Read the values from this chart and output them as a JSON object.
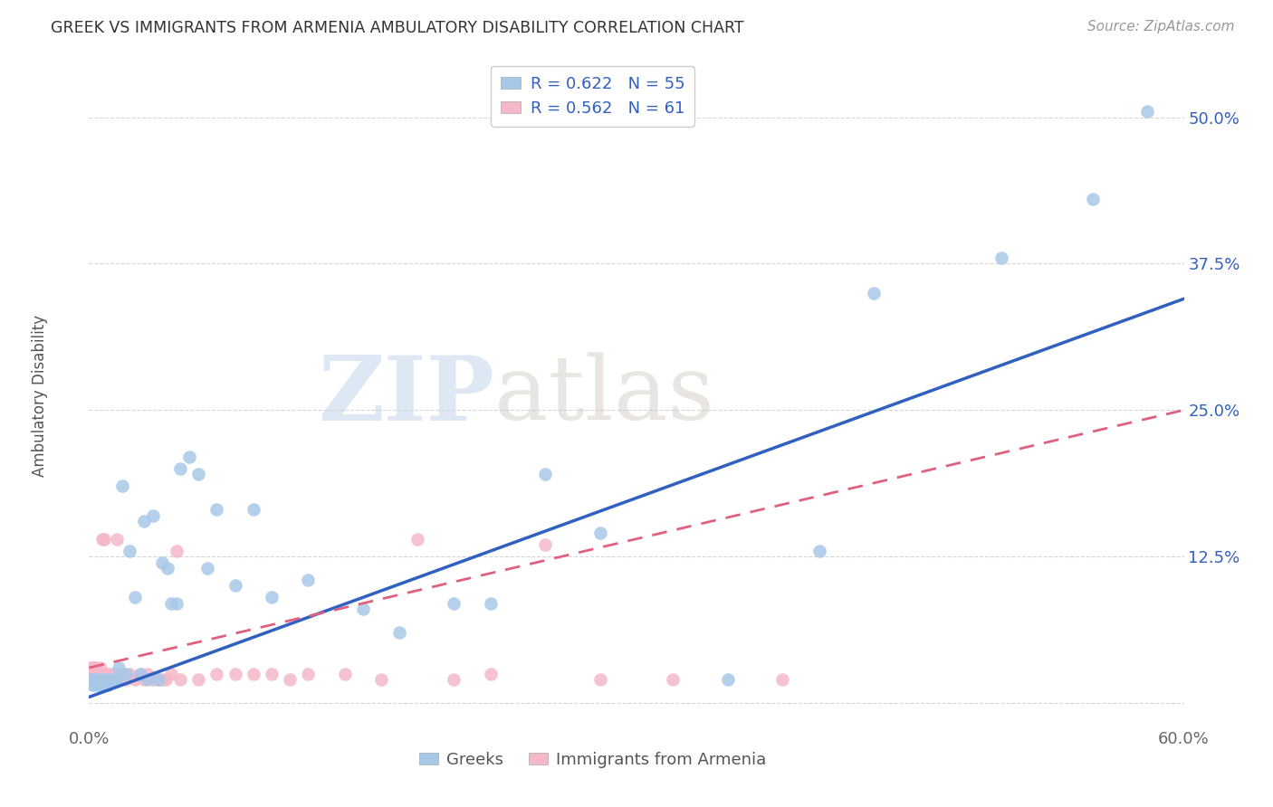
{
  "title": "GREEK VS IMMIGRANTS FROM ARMENIA AMBULATORY DISABILITY CORRELATION CHART",
  "source": "Source: ZipAtlas.com",
  "ylabel": "Ambulatory Disability",
  "xlim": [
    0.0,
    0.6
  ],
  "ylim": [
    -0.02,
    0.545
  ],
  "xticks": [
    0.0,
    0.1,
    0.2,
    0.3,
    0.4,
    0.5,
    0.6
  ],
  "xticklabels": [
    "0.0%",
    "",
    "",
    "",
    "",
    "",
    "60.0%"
  ],
  "yticks": [
    0.0,
    0.125,
    0.25,
    0.375,
    0.5
  ],
  "yticklabels": [
    "",
    "12.5%",
    "25.0%",
    "37.5%",
    "50.0%"
  ],
  "legend1_R": "0.622",
  "legend1_N": "55",
  "legend2_R": "0.562",
  "legend2_N": "61",
  "blue_color": "#a8c8e8",
  "pink_color": "#f4b8c8",
  "blue_line_color": "#3060c0",
  "pink_line_color": "#e06080",
  "watermark_zip": "ZIP",
  "watermark_atlas": "atlas",
  "blue_points_x": [
    0.001,
    0.002,
    0.002,
    0.003,
    0.003,
    0.004,
    0.005,
    0.005,
    0.006,
    0.007,
    0.007,
    0.008,
    0.009,
    0.01,
    0.01,
    0.011,
    0.012,
    0.013,
    0.014,
    0.015,
    0.016,
    0.018,
    0.02,
    0.022,
    0.025,
    0.028,
    0.03,
    0.032,
    0.035,
    0.038,
    0.04,
    0.043,
    0.045,
    0.048,
    0.05,
    0.055,
    0.06,
    0.065,
    0.07,
    0.08,
    0.09,
    0.1,
    0.12,
    0.15,
    0.17,
    0.2,
    0.22,
    0.25,
    0.28,
    0.35,
    0.4,
    0.43,
    0.5,
    0.55,
    0.58
  ],
  "blue_points_y": [
    0.02,
    0.02,
    0.015,
    0.02,
    0.015,
    0.018,
    0.02,
    0.015,
    0.02,
    0.018,
    0.015,
    0.02,
    0.018,
    0.02,
    0.015,
    0.02,
    0.02,
    0.018,
    0.02,
    0.02,
    0.03,
    0.185,
    0.025,
    0.13,
    0.09,
    0.025,
    0.155,
    0.02,
    0.16,
    0.02,
    0.12,
    0.115,
    0.085,
    0.085,
    0.2,
    0.21,
    0.195,
    0.115,
    0.165,
    0.1,
    0.165,
    0.09,
    0.105,
    0.08,
    0.06,
    0.085,
    0.085,
    0.195,
    0.145,
    0.02,
    0.13,
    0.35,
    0.38,
    0.43,
    0.505
  ],
  "pink_points_x": [
    0.001,
    0.001,
    0.001,
    0.002,
    0.002,
    0.002,
    0.003,
    0.003,
    0.003,
    0.004,
    0.004,
    0.004,
    0.005,
    0.005,
    0.006,
    0.006,
    0.006,
    0.007,
    0.007,
    0.008,
    0.008,
    0.009,
    0.009,
    0.01,
    0.01,
    0.011,
    0.012,
    0.013,
    0.015,
    0.015,
    0.017,
    0.018,
    0.02,
    0.022,
    0.025,
    0.028,
    0.03,
    0.032,
    0.035,
    0.038,
    0.04,
    0.042,
    0.045,
    0.048,
    0.05,
    0.06,
    0.07,
    0.08,
    0.09,
    0.1,
    0.11,
    0.12,
    0.14,
    0.16,
    0.18,
    0.2,
    0.22,
    0.25,
    0.28,
    0.32,
    0.38
  ],
  "pink_points_y": [
    0.02,
    0.025,
    0.03,
    0.02,
    0.025,
    0.03,
    0.02,
    0.025,
    0.03,
    0.02,
    0.025,
    0.03,
    0.02,
    0.025,
    0.02,
    0.025,
    0.03,
    0.02,
    0.14,
    0.02,
    0.14,
    0.02,
    0.025,
    0.02,
    0.025,
    0.02,
    0.025,
    0.02,
    0.025,
    0.14,
    0.02,
    0.025,
    0.02,
    0.025,
    0.02,
    0.025,
    0.02,
    0.025,
    0.02,
    0.02,
    0.02,
    0.02,
    0.025,
    0.13,
    0.02,
    0.02,
    0.025,
    0.025,
    0.025,
    0.025,
    0.02,
    0.025,
    0.025,
    0.02,
    0.14,
    0.02,
    0.025,
    0.135,
    0.02,
    0.02,
    0.02
  ],
  "blue_trendline_x0": 0.0,
  "blue_trendline_y0": 0.005,
  "blue_trendline_x1": 0.6,
  "blue_trendline_y1": 0.345,
  "pink_trendline_x0": 0.0,
  "pink_trendline_y0": 0.03,
  "pink_trendline_x1": 0.6,
  "pink_trendline_y1": 0.25
}
